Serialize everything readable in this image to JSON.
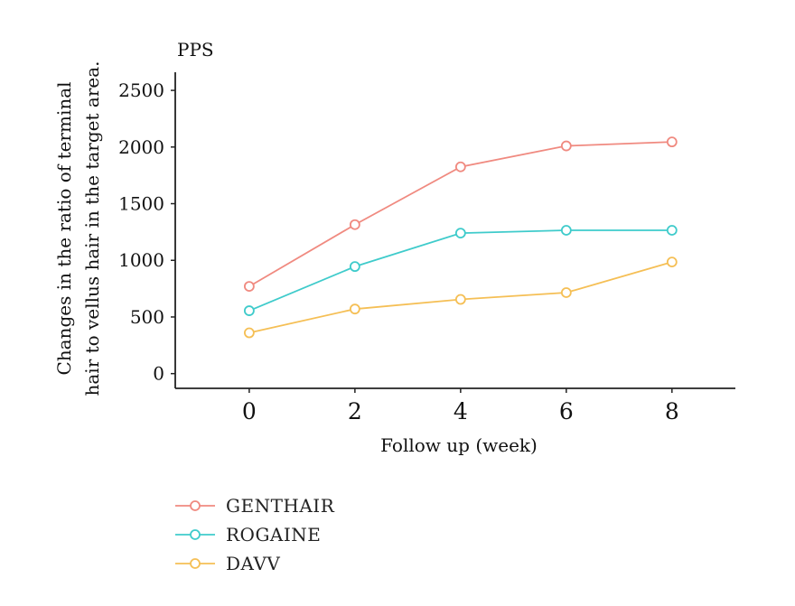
{
  "chart_data": {
    "type": "line",
    "title": "PPS",
    "xlabel": "Follow up (week)",
    "ylabel_lines": [
      "Changes in the ratio of terminal",
      "hair to vellus hair in the target area."
    ],
    "x": [
      0,
      2,
      4,
      6,
      8
    ],
    "xlim": [
      -1.4,
      9.2
    ],
    "ylim": [
      -130,
      2660
    ],
    "yticks": [
      0,
      500,
      1000,
      1500,
      2000,
      2500
    ],
    "grid": false,
    "legend_position": "bottom-left",
    "series": [
      {
        "name": "GENTHAIR",
        "color": "#F08A80",
        "values": [
          770,
          1315,
          1825,
          2010,
          2045
        ]
      },
      {
        "name": "ROGAINE",
        "color": "#3FCBCB",
        "values": [
          555,
          945,
          1240,
          1265,
          1265
        ]
      },
      {
        "name": "DAVV",
        "color": "#F5BF55",
        "values": [
          360,
          570,
          655,
          715,
          985
        ]
      }
    ]
  }
}
